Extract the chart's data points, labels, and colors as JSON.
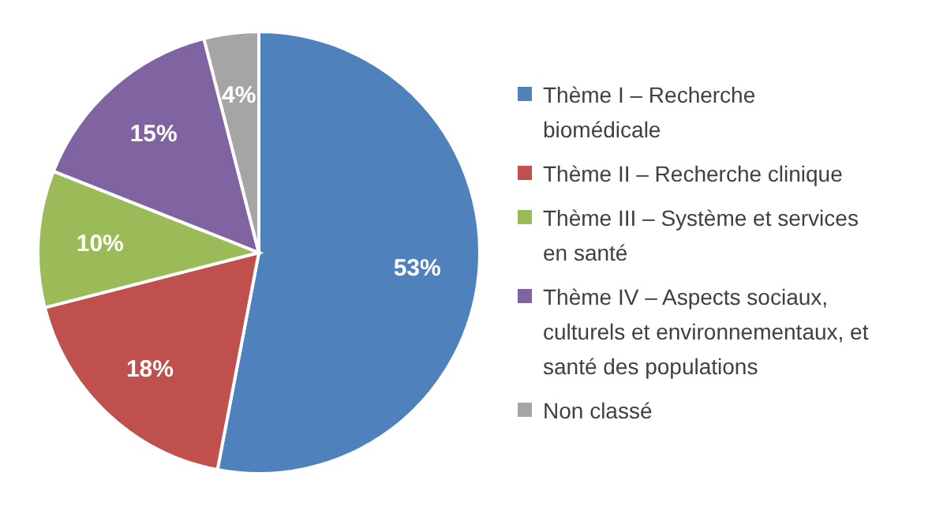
{
  "chart_data": {
    "type": "pie",
    "categories": [
      "Thème I – Recherche biomédicale",
      "Thème II – Recherche clinique",
      "Thème III – Système et services en santé",
      "Thème IV – Aspects sociaux, culturels et environnementaux, et santé des populations",
      "Non classé"
    ],
    "values": [
      53,
      18,
      10,
      15,
      4
    ],
    "colors": [
      "#4f81bd",
      "#c0504d",
      "#9bbb59",
      "#8064a2",
      "#a5a5a5"
    ],
    "value_labels": [
      "53%",
      "18%",
      "10%",
      "15%",
      "4%"
    ],
    "legend": "right"
  }
}
